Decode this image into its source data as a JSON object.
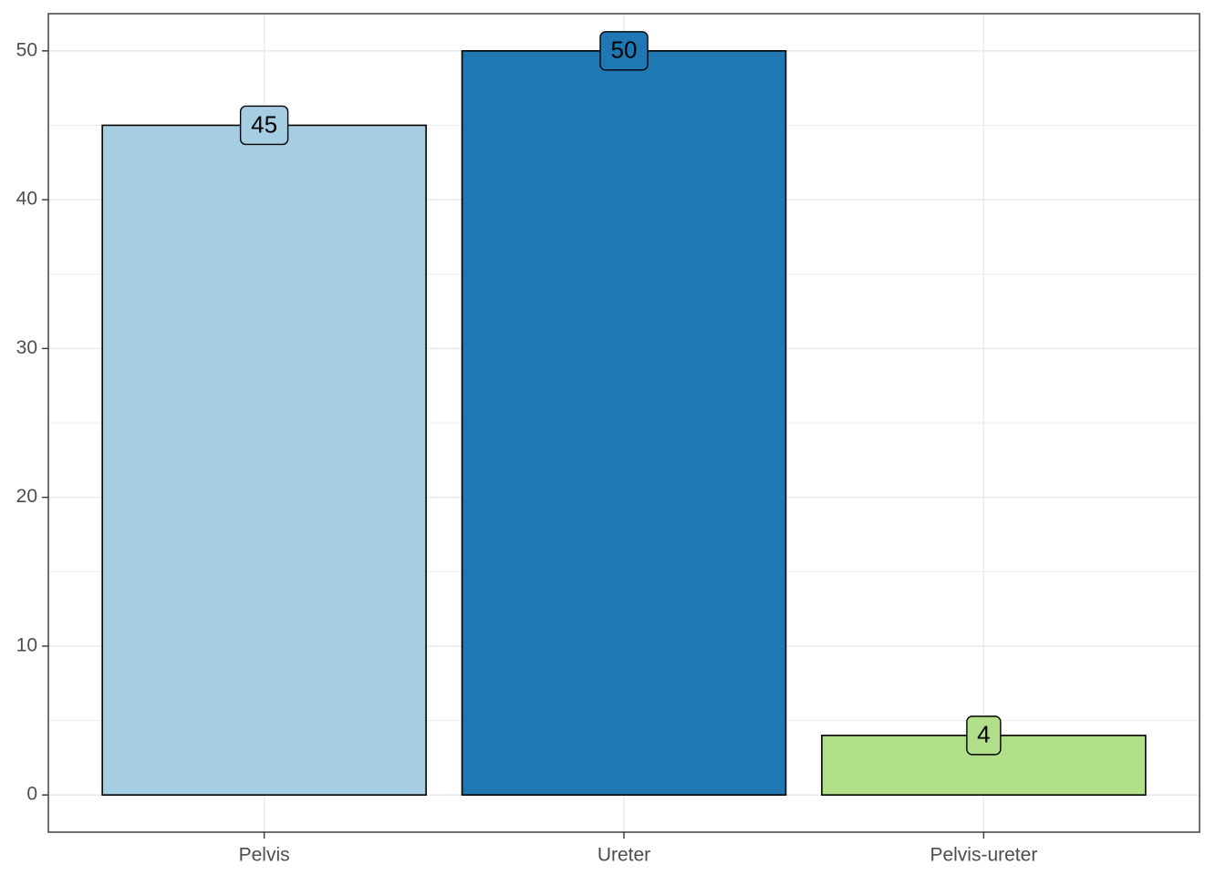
{
  "chart_data": {
    "type": "bar",
    "title": "",
    "xlabel": "",
    "ylabel": "",
    "categories": [
      "Pelvis",
      "Ureter",
      "Pelvis-ureter"
    ],
    "values": [
      45,
      50,
      4
    ],
    "data_labels": [
      "45",
      "50",
      "4"
    ],
    "colors": [
      "#a6cee3",
      "#1f78b4",
      "#b2df8a"
    ],
    "ylim": [
      -2.5,
      52.5
    ],
    "y_ticks": [
      0,
      10,
      20,
      30,
      40,
      50
    ],
    "y_minor_ticks": [
      5,
      15,
      25,
      35,
      45
    ],
    "grid": true,
    "legend": "none"
  }
}
